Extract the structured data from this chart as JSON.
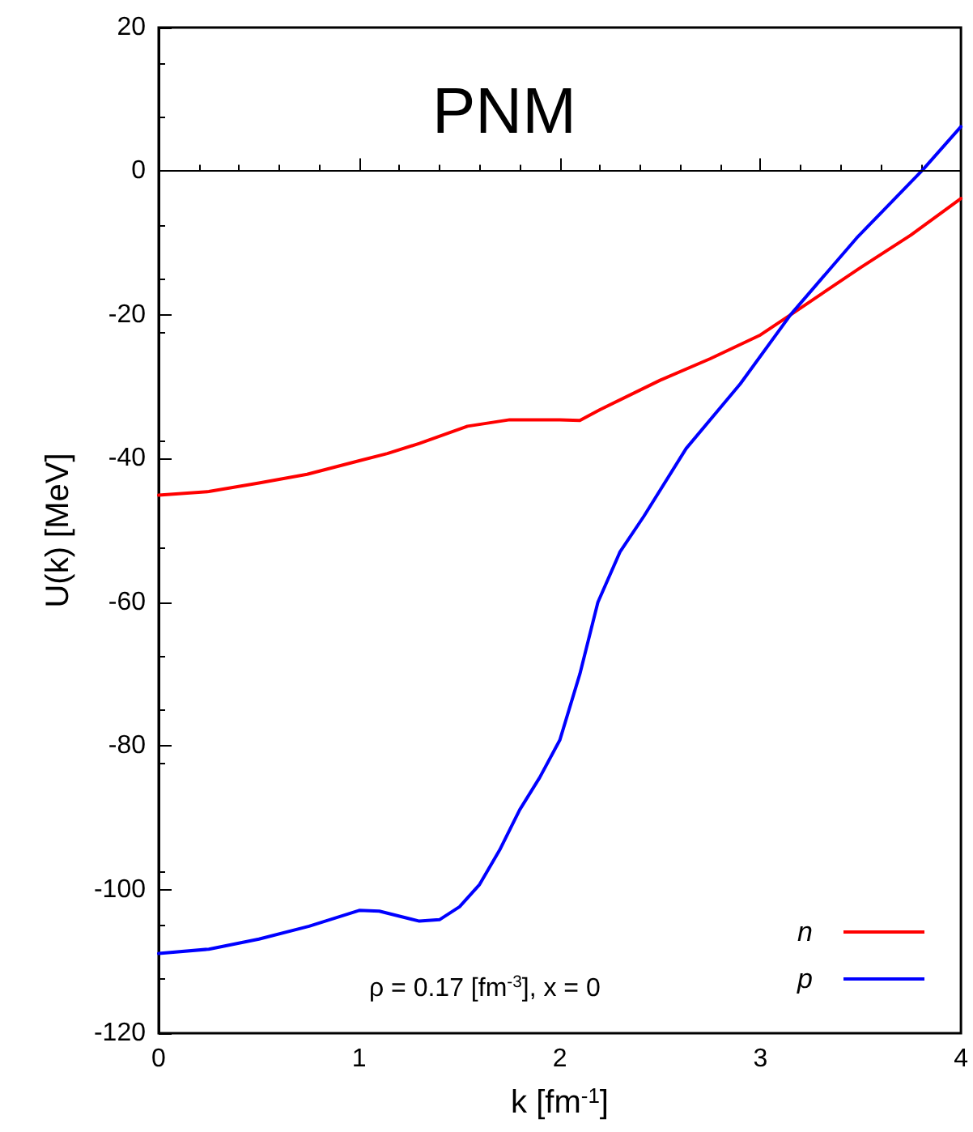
{
  "chart_data": {
    "type": "line",
    "title": "PNM",
    "xlabel": "k [fm$^{-1}$]",
    "ylabel": "U(k) [MeV]",
    "annotations": [
      "ρ = 0.17 [fm$^{-3}$], x = 0"
    ],
    "xlim": [
      0,
      4
    ],
    "xticks": [
      0,
      1,
      2,
      3,
      4
    ],
    "ylim": [
      -120,
      20
    ],
    "yticks": [
      -120,
      -100,
      -80,
      -60,
      -40,
      -20,
      0,
      20
    ],
    "grid": false,
    "legend": "bottom right",
    "marker": "none",
    "line_style": "solid",
    "ref_lines": [
      {
        "axis": "y",
        "value": 0,
        "label": null,
        "color": "#000000"
      }
    ],
    "series": [
      {
        "name": "n",
        "color": "#ff0000",
        "x": [
          0,
          0.25,
          0.5,
          0.74,
          1,
          1.14,
          1.3,
          1.54,
          1.75,
          2,
          2.1,
          2.2,
          2.5,
          2.75,
          3,
          3.15,
          3.5,
          3.75,
          4
        ],
        "values": [
          -45.1,
          -44.6,
          -43.4,
          -42.2,
          -40.3,
          -39.3,
          -37.9,
          -35.5,
          -34.6,
          -34.6,
          -34.7,
          -33.2,
          -29.1,
          -26.1,
          -22.8,
          -20,
          -13.4,
          -8.9,
          -3.8
        ]
      },
      {
        "name": "p",
        "color": "#0000ff",
        "x": [
          0,
          0.25,
          0.5,
          0.75,
          1,
          1.1,
          1.3,
          1.4,
          1.5,
          1.6,
          1.7,
          1.8,
          1.9,
          2,
          2.1,
          2.19,
          2.3,
          2.42,
          2.63,
          2.9,
          3.15,
          3.48,
          3.81,
          4
        ],
        "values": [
          -108.9,
          -108.3,
          -106.9,
          -105.1,
          -102.9,
          -103,
          -104.4,
          -104.2,
          -102.4,
          -99.3,
          -94.5,
          -88.9,
          -84.4,
          -79.2,
          -70,
          -60,
          -53,
          -48,
          -38.6,
          -29.6,
          -20,
          -9.3,
          0.2,
          6.2
        ]
      }
    ]
  }
}
